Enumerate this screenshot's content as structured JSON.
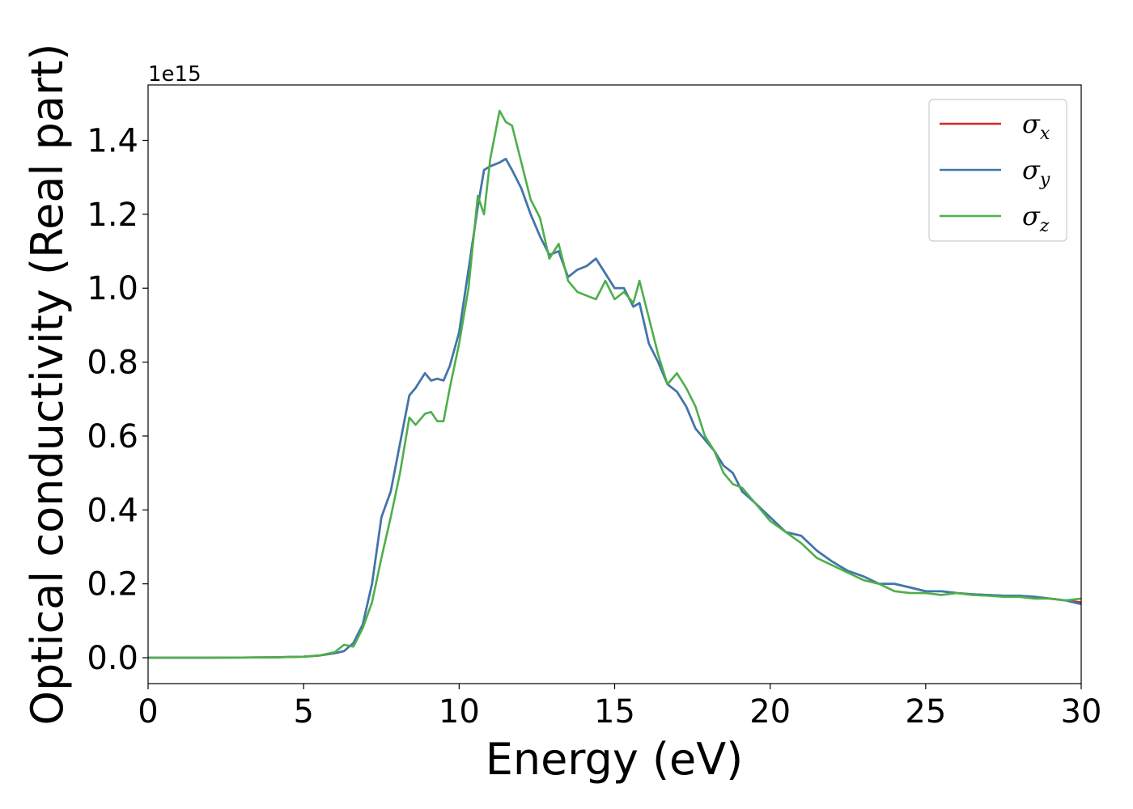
{
  "chart_data": {
    "type": "line",
    "xlabel": "Energy (eV)",
    "ylabel": "Optical conductivity (Real part)",
    "y_offset_label": "1e15",
    "xlim": [
      0,
      30
    ],
    "ylim": [
      -0.07,
      1.55
    ],
    "x_ticks": [
      0,
      5,
      10,
      15,
      20,
      25,
      30
    ],
    "x_tick_labels": [
      "0",
      "5",
      "10",
      "15",
      "20",
      "25",
      "30"
    ],
    "y_ticks": [
      0.0,
      0.2,
      0.4,
      0.6,
      0.8,
      1.0,
      1.2,
      1.4
    ],
    "y_tick_labels": [
      "0.0",
      "0.2",
      "0.4",
      "0.6",
      "0.8",
      "1.0",
      "1.2",
      "1.4"
    ],
    "grid": false,
    "legend": {
      "position": "top-right",
      "entries": [
        {
          "symbol": "σ",
          "subscript": "x",
          "color": "#d62728"
        },
        {
          "symbol": "σ",
          "subscript": "y",
          "color": "#3a78b0"
        },
        {
          "symbol": "σ",
          "subscript": "z",
          "color": "#4daf4a"
        }
      ]
    },
    "x": [
      0,
      2,
      4,
      5,
      5.5,
      6,
      6.3,
      6.6,
      6.9,
      7.2,
      7.5,
      7.8,
      8.1,
      8.4,
      8.6,
      8.9,
      9.1,
      9.3,
      9.5,
      9.7,
      10.0,
      10.3,
      10.6,
      10.8,
      11.0,
      11.3,
      11.5,
      11.7,
      12.0,
      12.3,
      12.6,
      12.9,
      13.2,
      13.5,
      13.8,
      14.1,
      14.4,
      14.7,
      15.0,
      15.3,
      15.6,
      15.8,
      16.1,
      16.4,
      16.7,
      17.0,
      17.3,
      17.6,
      17.9,
      18.2,
      18.5,
      18.8,
      19.1,
      19.5,
      20.0,
      20.5,
      21.0,
      21.5,
      22.0,
      22.5,
      23.0,
      23.5,
      24.0,
      24.5,
      25.0,
      25.5,
      26.0,
      26.5,
      27.0,
      27.5,
      28.0,
      28.5,
      29.0,
      29.5,
      30.0
    ],
    "series": [
      {
        "name": "σx",
        "color": "#d62728",
        "values": [
          0.0,
          0.0,
          0.001,
          0.003,
          0.006,
          0.012,
          0.018,
          0.04,
          0.09,
          0.2,
          0.38,
          0.45,
          0.58,
          0.71,
          0.73,
          0.77,
          0.75,
          0.755,
          0.75,
          0.79,
          0.88,
          1.05,
          1.22,
          1.32,
          1.33,
          1.34,
          1.35,
          1.32,
          1.27,
          1.2,
          1.14,
          1.09,
          1.1,
          1.03,
          1.05,
          1.06,
          1.08,
          1.04,
          1.0,
          1.0,
          0.95,
          0.96,
          0.85,
          0.8,
          0.74,
          0.72,
          0.68,
          0.62,
          0.59,
          0.56,
          0.52,
          0.5,
          0.45,
          0.42,
          0.38,
          0.34,
          0.33,
          0.29,
          0.26,
          0.235,
          0.22,
          0.2,
          0.2,
          0.19,
          0.18,
          0.18,
          0.175,
          0.172,
          0.17,
          0.168,
          0.168,
          0.165,
          0.16,
          0.155,
          0.15
        ]
      },
      {
        "name": "σy",
        "color": "#3a78b0",
        "values": [
          0.0,
          0.0,
          0.001,
          0.003,
          0.006,
          0.012,
          0.018,
          0.04,
          0.09,
          0.2,
          0.38,
          0.45,
          0.58,
          0.71,
          0.73,
          0.77,
          0.75,
          0.755,
          0.75,
          0.79,
          0.88,
          1.05,
          1.22,
          1.32,
          1.33,
          1.34,
          1.35,
          1.32,
          1.27,
          1.2,
          1.14,
          1.09,
          1.1,
          1.03,
          1.05,
          1.06,
          1.08,
          1.04,
          1.0,
          1.0,
          0.95,
          0.96,
          0.85,
          0.8,
          0.74,
          0.72,
          0.68,
          0.62,
          0.59,
          0.56,
          0.52,
          0.5,
          0.45,
          0.42,
          0.38,
          0.34,
          0.33,
          0.29,
          0.26,
          0.235,
          0.22,
          0.2,
          0.2,
          0.19,
          0.18,
          0.18,
          0.175,
          0.172,
          0.17,
          0.168,
          0.168,
          0.165,
          0.16,
          0.155,
          0.145
        ]
      },
      {
        "name": "σz",
        "color": "#4daf4a",
        "values": [
          0.0,
          0.0,
          0.001,
          0.003,
          0.006,
          0.015,
          0.035,
          0.03,
          0.08,
          0.15,
          0.27,
          0.38,
          0.5,
          0.65,
          0.63,
          0.66,
          0.665,
          0.64,
          0.64,
          0.73,
          0.85,
          1.0,
          1.25,
          1.2,
          1.35,
          1.48,
          1.45,
          1.44,
          1.34,
          1.24,
          1.19,
          1.08,
          1.12,
          1.02,
          0.99,
          0.98,
          0.97,
          1.02,
          0.97,
          0.99,
          0.96,
          1.02,
          0.92,
          0.82,
          0.74,
          0.77,
          0.73,
          0.68,
          0.6,
          0.56,
          0.5,
          0.47,
          0.46,
          0.42,
          0.37,
          0.34,
          0.31,
          0.27,
          0.25,
          0.23,
          0.21,
          0.2,
          0.18,
          0.175,
          0.175,
          0.17,
          0.175,
          0.17,
          0.168,
          0.165,
          0.165,
          0.16,
          0.16,
          0.155,
          0.16
        ]
      }
    ]
  }
}
